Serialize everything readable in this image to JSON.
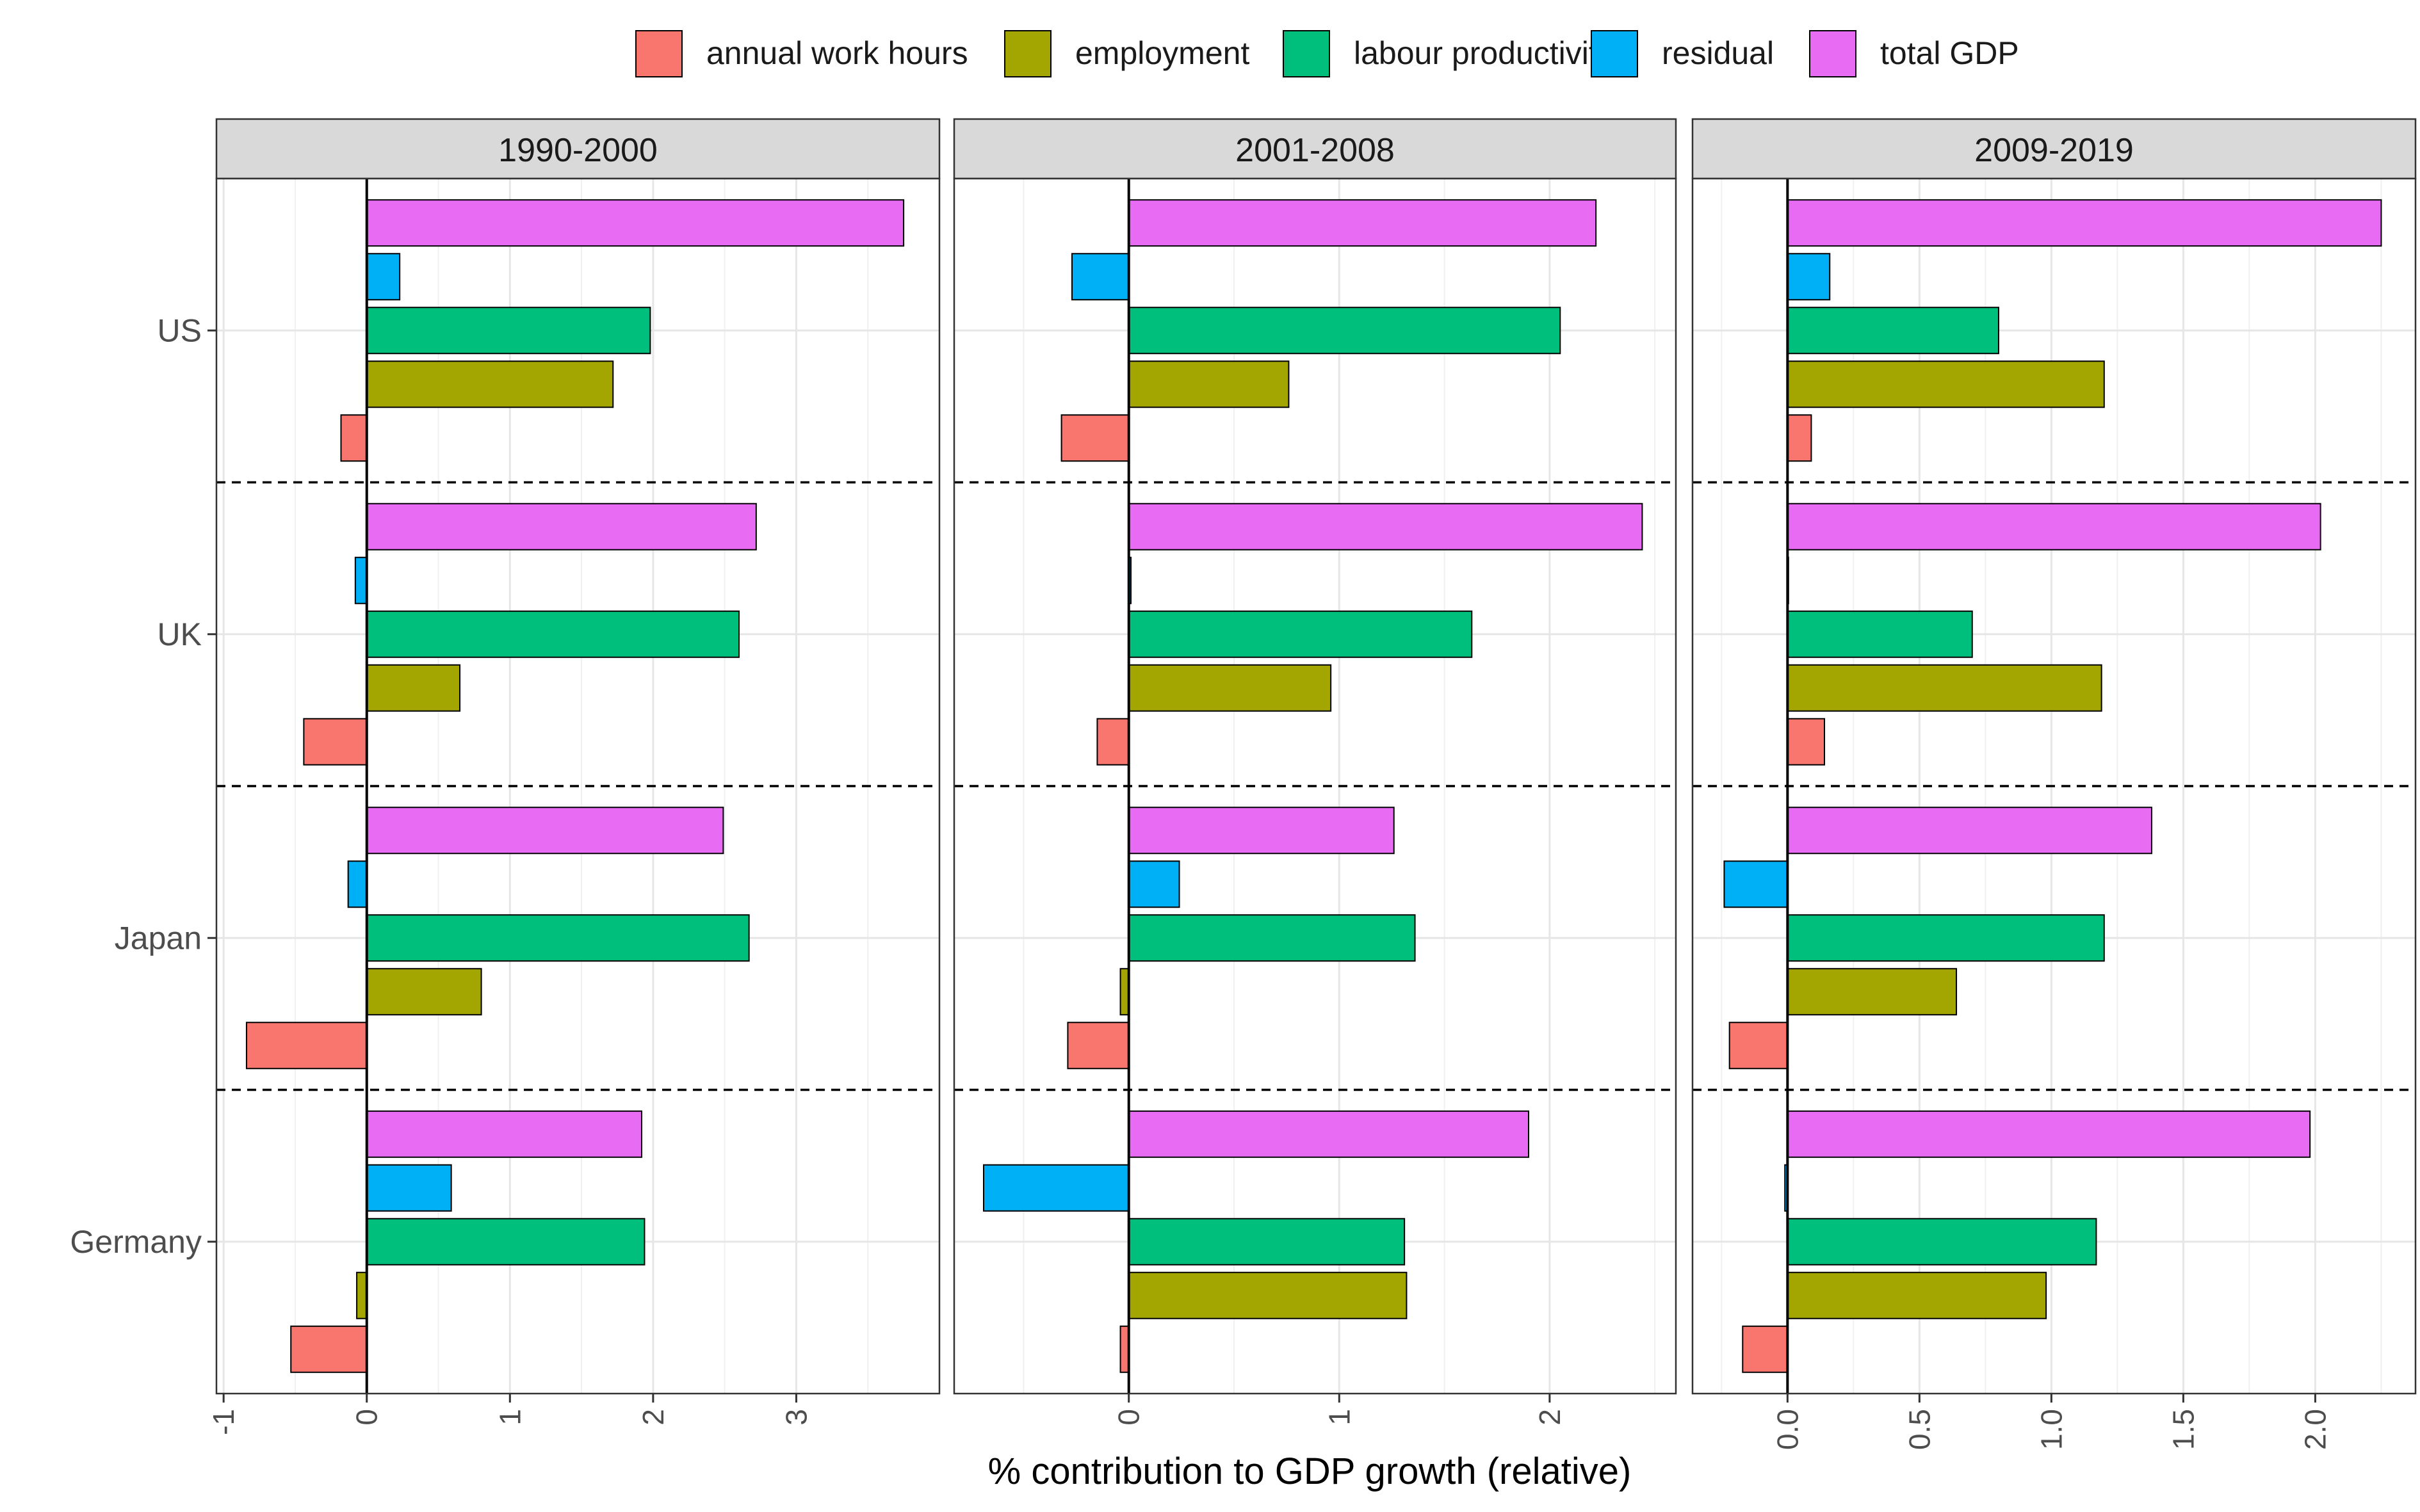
{
  "chart_data": {
    "type": "bar",
    "orientation": "horizontal",
    "xlabel": "% contribution to GDP growth (relative)",
    "ylabel": "",
    "categories": [
      "US",
      "UK",
      "Japan",
      "Germany"
    ],
    "series_order": [
      "annual work hours",
      "employment",
      "labour productivity",
      "residual",
      "total GDP"
    ],
    "legend": {
      "position": "top",
      "entries": [
        {
          "name": "annual work hours",
          "color": "#F8766D"
        },
        {
          "name": "employment",
          "color": "#A3A500"
        },
        {
          "name": "labour productivity",
          "color": "#00BF7D"
        },
        {
          "name": "residual",
          "color": "#00B0F6"
        },
        {
          "name": "total GDP",
          "color": "#E76BF3"
        }
      ]
    },
    "grid": true,
    "panels": [
      {
        "title": "1990-2000",
        "xlim": [
          -1.05,
          4.0
        ],
        "ticks": [
          -1,
          0,
          1,
          2,
          3
        ],
        "tick_labels": [
          "-1",
          "0",
          "1",
          "2",
          "3"
        ],
        "values": {
          "US": {
            "annual work hours": -0.18,
            "employment": 1.72,
            "labour productivity": 1.98,
            "residual": 0.23,
            "total GDP": 3.75
          },
          "UK": {
            "annual work hours": -0.44,
            "employment": 0.65,
            "labour productivity": 2.6,
            "residual": -0.08,
            "total GDP": 2.72
          },
          "Japan": {
            "annual work hours": -0.84,
            "employment": 0.8,
            "labour productivity": 2.67,
            "residual": -0.13,
            "total GDP": 2.49
          },
          "Germany": {
            "annual work hours": -0.53,
            "employment": -0.07,
            "labour productivity": 1.94,
            "residual": 0.59,
            "total GDP": 1.92
          }
        }
      },
      {
        "title": "2001-2008",
        "xlim": [
          -0.83,
          2.6
        ],
        "ticks": [
          0,
          1,
          2
        ],
        "tick_labels": [
          "0",
          "1",
          "2"
        ],
        "values": {
          "US": {
            "annual work hours": -0.32,
            "employment": 0.76,
            "labour productivity": 2.05,
            "residual": -0.27,
            "total GDP": 2.22
          },
          "UK": {
            "annual work hours": -0.15,
            "employment": 0.96,
            "labour productivity": 1.63,
            "residual": 0.01,
            "total GDP": 2.44
          },
          "Japan": {
            "annual work hours": -0.29,
            "employment": -0.04,
            "labour productivity": 1.36,
            "residual": 0.24,
            "total GDP": 1.26
          },
          "Germany": {
            "annual work hours": -0.04,
            "employment": 1.32,
            "labour productivity": 1.31,
            "residual": -0.69,
            "total GDP": 1.9
          }
        }
      },
      {
        "title": "2009-2019",
        "xlim": [
          -0.36,
          2.38
        ],
        "ticks": [
          0.0,
          0.5,
          1.0,
          1.5,
          2.0
        ],
        "tick_labels": [
          "0.0",
          "0.5",
          "1.0",
          "1.5",
          "2.0"
        ],
        "values": {
          "US": {
            "annual work hours": 0.09,
            "employment": 1.2,
            "labour productivity": 0.8,
            "residual": 0.16,
            "total GDP": 2.25
          },
          "UK": {
            "annual work hours": 0.14,
            "employment": 1.19,
            "labour productivity": 0.7,
            "residual": 0.0,
            "total GDP": 2.02
          },
          "Japan": {
            "annual work hours": -0.22,
            "employment": 0.64,
            "labour productivity": 1.2,
            "residual": -0.24,
            "total GDP": 1.38
          },
          "Germany": {
            "annual work hours": -0.17,
            "employment": 0.98,
            "labour productivity": 1.17,
            "residual": -0.01,
            "total GDP": 1.98
          }
        }
      }
    ]
  }
}
